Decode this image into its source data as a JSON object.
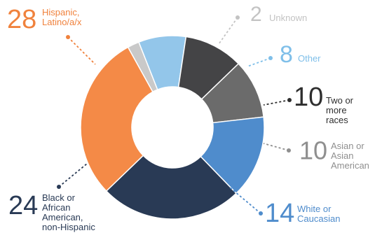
{
  "chart_data": {
    "type": "pie",
    "variant": "donut",
    "slices": [
      {
        "value": 2,
        "label_lines": [
          "Unknown"
        ],
        "color": "#c9c9c9",
        "text_color": "#c3c3c3"
      },
      {
        "value": 8,
        "label_lines": [
          "Other"
        ],
        "color": "#93c6ea",
        "text_color": "#7fbfe9"
      },
      {
        "value": 10,
        "label_lines": [
          "Two or",
          "more",
          "races"
        ],
        "color": "#444446",
        "text_color": "#2e2e2e"
      },
      {
        "value": 10,
        "label_lines": [
          "Asian or",
          "Asian",
          "American"
        ],
        "color": "#6b6b6b",
        "text_color": "#8f8f8f"
      },
      {
        "value": 14,
        "label_lines": [
          "White or",
          "Caucasian"
        ],
        "color": "#4f8ccc",
        "text_color": "#4f8ccc"
      },
      {
        "value": 24,
        "label_lines": [
          "Black or",
          "African",
          "American,",
          "non-Hispanic"
        ],
        "color": "#293a55",
        "text_color": "#293a55"
      },
      {
        "value": 28,
        "label_lines": [
          "Hispanic,",
          "Latino/a/x"
        ],
        "color": "#f48a47",
        "text_color": "#f0823d"
      }
    ]
  }
}
